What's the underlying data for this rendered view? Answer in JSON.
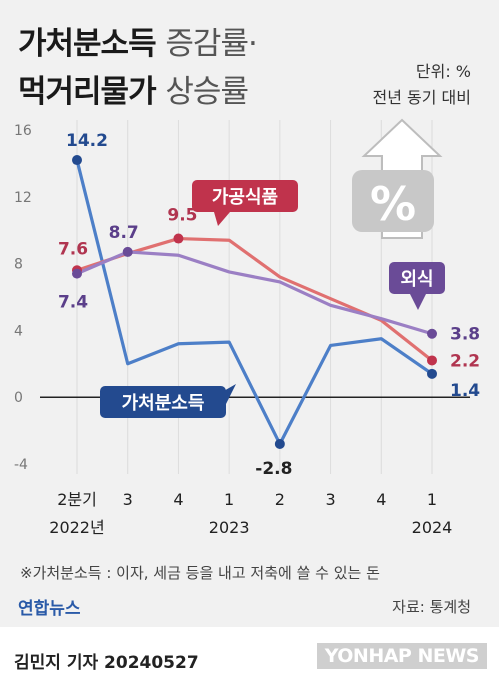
{
  "title": {
    "line1_bold": "가처분소득",
    "line1_light": "증감률·",
    "line2_bold": "먹거리물가",
    "line2_light": "상승률"
  },
  "unit": {
    "line1": "단위: %",
    "line2": "전년 동기 대비"
  },
  "chart_data": {
    "type": "line",
    "categories": [
      "2분기",
      "3",
      "4",
      "1",
      "2",
      "3",
      "4",
      "1"
    ],
    "year_labels": [
      "2022년",
      "2023",
      "2024"
    ],
    "ylim": [
      -4,
      16
    ],
    "yticks": [
      "-4",
      "0",
      "4",
      "8",
      "12",
      "16"
    ],
    "series": [
      {
        "name": "가처분소득",
        "color": "#4d7fc8",
        "values": [
          14.2,
          2.0,
          3.2,
          3.3,
          -2.8,
          3.1,
          3.5,
          1.4
        ]
      },
      {
        "name": "가공식품",
        "color": "#e07070",
        "values": [
          7.6,
          8.6,
          9.5,
          9.4,
          7.2,
          5.9,
          4.6,
          2.2
        ]
      },
      {
        "name": "외식",
        "color": "#9b7fc4",
        "values": [
          7.4,
          8.7,
          8.5,
          7.5,
          6.9,
          5.5,
          4.7,
          3.8
        ]
      }
    ],
    "value_labels": {
      "가처분소득": [
        "14.2",
        "-2.8",
        "1.4"
      ],
      "가공식품": [
        "7.6",
        "9.5",
        "2.2"
      ],
      "외식": [
        "7.4",
        "8.7",
        "3.8"
      ]
    }
  },
  "note": "※가처분소득 : 이자, 세금 등을 내고 저축에 쓸 수 있는 돈",
  "logo": "연합뉴스",
  "source": "자료: 통계청",
  "reporter": "김민지 기자  20240527",
  "watermark": "YONHAP NEWS"
}
